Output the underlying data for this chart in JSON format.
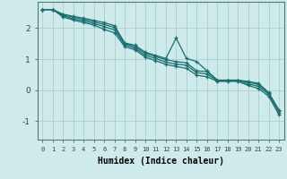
{
  "xlabel": "Humidex (Indice chaleur)",
  "ylabel": "",
  "bg_color": "#ceeaea",
  "grid_color": "#aacece",
  "line_color": "#1a6e6e",
  "xlim": [
    -0.5,
    23.5
  ],
  "ylim": [
    -1.6,
    2.85
  ],
  "yticks": [
    -1,
    0,
    1,
    2
  ],
  "xticks": [
    0,
    1,
    2,
    3,
    4,
    5,
    6,
    7,
    8,
    9,
    10,
    11,
    12,
    13,
    14,
    15,
    16,
    17,
    18,
    19,
    20,
    21,
    22,
    23
  ],
  "series": [
    [
      2.6,
      2.6,
      2.45,
      2.38,
      2.32,
      2.25,
      2.18,
      2.08,
      1.52,
      1.45,
      1.22,
      1.12,
      1.02,
      1.68,
      1.02,
      0.92,
      0.62,
      0.32,
      0.32,
      0.32,
      0.28,
      0.22,
      -0.08,
      -0.65
    ],
    [
      2.6,
      2.6,
      2.43,
      2.35,
      2.28,
      2.2,
      2.12,
      2.02,
      1.5,
      1.4,
      1.18,
      1.08,
      0.98,
      0.92,
      0.88,
      0.62,
      0.6,
      0.32,
      0.32,
      0.32,
      0.25,
      0.18,
      -0.1,
      -0.68
    ],
    [
      2.6,
      2.6,
      2.4,
      2.3,
      2.23,
      2.15,
      2.05,
      1.94,
      1.46,
      1.35,
      1.12,
      1.02,
      0.9,
      0.84,
      0.8,
      0.56,
      0.52,
      0.3,
      0.3,
      0.3,
      0.2,
      0.12,
      -0.14,
      -0.72
    ],
    [
      2.6,
      2.6,
      2.36,
      2.26,
      2.18,
      2.1,
      1.96,
      1.85,
      1.4,
      1.3,
      1.06,
      0.95,
      0.83,
      0.76,
      0.7,
      0.48,
      0.43,
      0.28,
      0.28,
      0.28,
      0.15,
      0.05,
      -0.2,
      -0.8
    ]
  ]
}
